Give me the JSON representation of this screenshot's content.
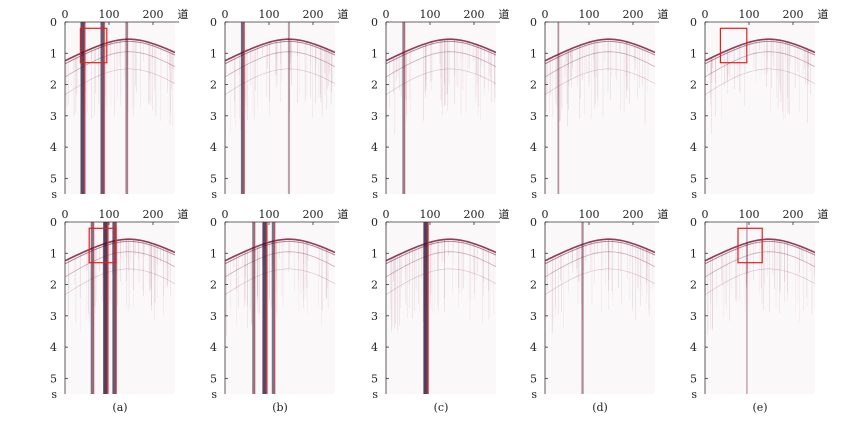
{
  "figure": {
    "axis": {
      "x_ticks": [
        "0",
        "100",
        "200"
      ],
      "x_unit": "道",
      "y_ticks": [
        "0",
        "1",
        "2",
        "3",
        "4",
        "5"
      ],
      "y_unit": "s"
    },
    "captions": [
      "(a)",
      "(b)",
      "(c)",
      "(d)",
      "(e)"
    ],
    "panels": [
      {
        "id": "a-top",
        "row": 0,
        "col": 0,
        "box": true,
        "box_trace": [
          35,
          95
        ],
        "box_time": [
          0.2,
          1.3
        ],
        "noise_traces": [
          {
            "trace": 40,
            "strength": 0.9
          },
          {
            "trace": 85,
            "strength": 0.8
          },
          {
            "trace": 140,
            "strength": 0.4
          }
        ]
      },
      {
        "id": "b-top",
        "row": 0,
        "col": 1,
        "box": false,
        "noise_traces": [
          {
            "trace": 40,
            "strength": 0.7
          },
          {
            "trace": 145,
            "strength": 0.2
          }
        ]
      },
      {
        "id": "c-top",
        "row": 0,
        "col": 2,
        "box": false,
        "noise_traces": [
          {
            "trace": 40,
            "strength": 0.45
          }
        ]
      },
      {
        "id": "d-top",
        "row": 0,
        "col": 3,
        "box": false,
        "noise_traces": [
          {
            "trace": 30,
            "strength": 0.2
          }
        ]
      },
      {
        "id": "e-top",
        "row": 0,
        "col": 4,
        "box": true,
        "box_trace": [
          35,
          95
        ],
        "box_time": [
          0.2,
          1.3
        ],
        "noise_traces": []
      },
      {
        "id": "a-bottom",
        "row": 1,
        "col": 0,
        "box": true,
        "box_trace": [
          55,
          115
        ],
        "box_time": [
          0.2,
          1.3
        ],
        "noise_traces": [
          {
            "trace": 62,
            "strength": 0.6
          },
          {
            "trace": 92,
            "strength": 1.0
          },
          {
            "trace": 112,
            "strength": 0.8
          }
        ]
      },
      {
        "id": "b-bottom",
        "row": 1,
        "col": 1,
        "box": false,
        "noise_traces": [
          {
            "trace": 65,
            "strength": 0.5
          },
          {
            "trace": 90,
            "strength": 0.95
          },
          {
            "trace": 110,
            "strength": 0.6
          }
        ]
      },
      {
        "id": "c-bottom",
        "row": 1,
        "col": 2,
        "box": false,
        "noise_traces": [
          {
            "trace": 90,
            "strength": 1.0
          }
        ]
      },
      {
        "id": "d-bottom",
        "row": 1,
        "col": 3,
        "box": false,
        "noise_traces": [
          {
            "trace": 85,
            "strength": 0.3
          }
        ]
      },
      {
        "id": "e-bottom",
        "row": 1,
        "col": 4,
        "box": true,
        "box_trace": [
          75,
          130
        ],
        "box_time": [
          0.2,
          1.3
        ],
        "noise_traces": [
          {
            "trace": 95,
            "strength": 0.1
          }
        ]
      }
    ],
    "colors": {
      "signal": "#7a1e3a",
      "noise_red": "#d0303a",
      "noise_dark": "#2a1030",
      "box": "#e02020"
    }
  }
}
